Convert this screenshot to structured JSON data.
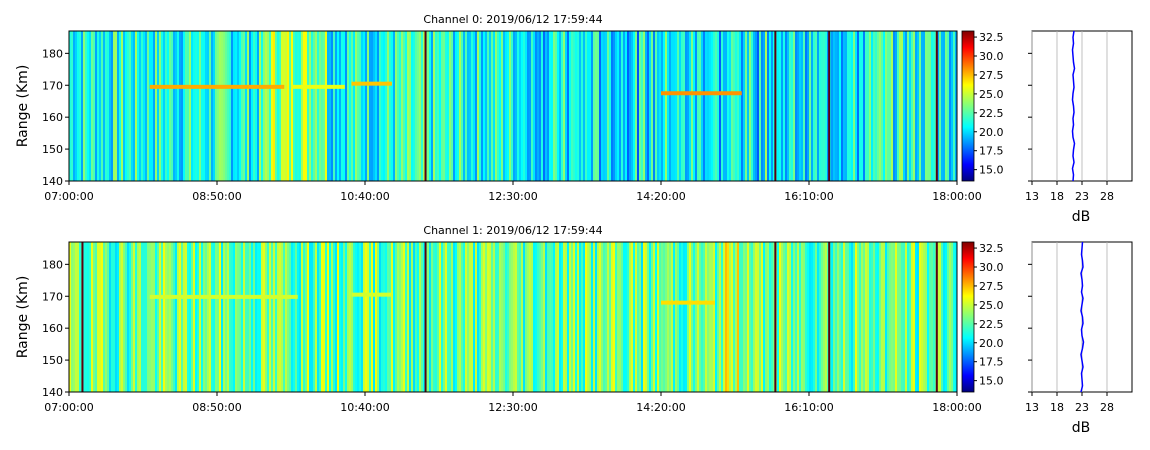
{
  "chart_data": [
    {
      "type": "heatmap",
      "title": "Channel 0: 2019/06/12 17:59:44",
      "ylabel": "Range (Km)",
      "xticks": [
        "07:00:00",
        "08:50:00",
        "10:40:00",
        "12:30:00",
        "14:20:00",
        "16:10:00",
        "18:00:00"
      ],
      "yticks": [
        140,
        150,
        160,
        170,
        180
      ],
      "ylim": [
        140,
        187
      ],
      "colorbar": {
        "ticks": [
          "15.0",
          "17.5",
          "20.0",
          "22.5",
          "25.0",
          "27.5",
          "30.0",
          "32.5"
        ],
        "range": [
          13.5,
          33.3
        ],
        "colormap": "jet"
      },
      "base_level_db": 21.5,
      "streaks": [
        {
          "start": "08:00:00",
          "end": "09:40:00",
          "range_km": 169.5,
          "level_db": 27.5
        },
        {
          "start": "09:45:00",
          "end": "10:25:00",
          "range_km": 169.5,
          "level_db": 25.5
        },
        {
          "start": "10:30:00",
          "end": "11:00:00",
          "range_km": 170.5,
          "level_db": 27.0
        },
        {
          "start": "14:20:00",
          "end": "15:20:00",
          "range_km": 167.5,
          "level_db": 28.0
        }
      ],
      "dark_lines": [
        "11:25:00",
        "15:45:00",
        "16:25:00",
        "17:45:00"
      ],
      "profile": {
        "xlabel": "dB",
        "xticks": [
          13,
          18,
          23,
          28
        ],
        "xlim": [
          13,
          33
        ],
        "values_db": [
          21.2,
          21.3,
          21.1,
          21.4,
          21.2,
          21.3,
          21.5,
          21.2,
          21.1,
          21.3,
          21.2,
          21.4,
          21.3,
          21.1,
          21.2,
          21.4,
          21.3,
          21.2,
          21.5,
          21.3,
          21.2,
          21.1,
          21.3,
          21.2,
          21.4
        ]
      }
    },
    {
      "type": "heatmap",
      "title": "Channel 1: 2019/06/12 17:59:44",
      "ylabel": "Range (Km)",
      "xticks": [
        "07:00:00",
        "08:50:00",
        "10:40:00",
        "12:30:00",
        "14:20:00",
        "16:10:00",
        "18:00:00"
      ],
      "yticks": [
        140,
        150,
        160,
        170,
        180
      ],
      "ylim": [
        140,
        187
      ],
      "colorbar": {
        "ticks": [
          "15.0",
          "17.5",
          "20.0",
          "22.5",
          "25.0",
          "27.5",
          "30.0",
          "32.5"
        ],
        "range": [
          13.5,
          33.3
        ],
        "colormap": "jet"
      },
      "base_level_db": 23.0,
      "streaks": [
        {
          "start": "08:00:00",
          "end": "09:50:00",
          "range_km": 169.8,
          "level_db": 25.0
        },
        {
          "start": "10:30:00",
          "end": "11:00:00",
          "range_km": 170.5,
          "level_db": 25.0
        },
        {
          "start": "14:20:00",
          "end": "15:00:00",
          "range_km": 168.0,
          "level_db": 26.5
        }
      ],
      "dark_lines": [
        "07:10:00",
        "11:25:00",
        "15:45:00",
        "16:25:00",
        "17:45:00"
      ],
      "profile": {
        "xlabel": "dB",
        "xticks": [
          13,
          18,
          23,
          28
        ],
        "xlim": [
          13,
          33
        ],
        "values_db": [
          22.8,
          23.1,
          23.0,
          22.9,
          23.2,
          23.0,
          22.8,
          23.1,
          23.3,
          23.0,
          22.9,
          23.2,
          23.1,
          22.8,
          23.0,
          23.2,
          22.9,
          23.1,
          23.0,
          22.8,
          23.2,
          23.1,
          22.9,
          23.0,
          23.1
        ]
      }
    }
  ]
}
